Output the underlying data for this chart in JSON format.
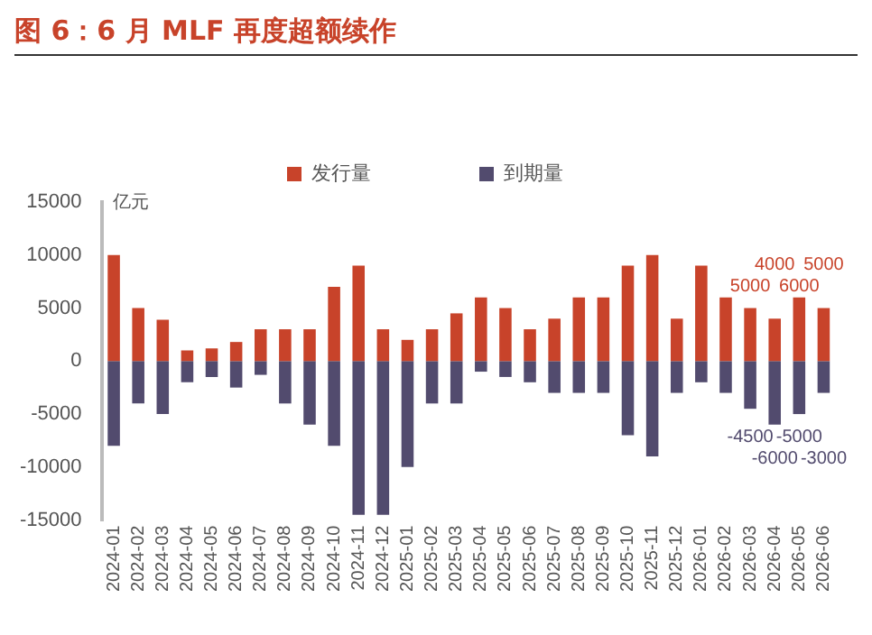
{
  "chart_data": {
    "type": "bar",
    "title": "图 6：6 月 MLF 再度超额续作",
    "ylabel": "亿元",
    "stacked": true,
    "legend": "top",
    "categories": [
      "2024-01",
      "2024-02",
      "2024-03",
      "2024-04",
      "2024-05",
      "2024-06",
      "2024-07",
      "2024-08",
      "2024-09",
      "2024-10",
      "2024-11",
      "2024-12",
      "2025-01",
      "2025-02",
      "2025-03",
      "2025-04",
      "2025-05",
      "2025-06",
      "2025-07",
      "2025-08",
      "2025-09",
      "2025-10",
      "2025-11",
      "2025-12",
      "2026-01",
      "2026-02",
      "2026-03",
      "2026-04",
      "2026-05",
      "2026-06"
    ],
    "series": [
      {
        "name": "发行量",
        "color": "#c8432a",
        "values": [
          10000,
          5000,
          3900,
          1000,
          1200,
          1800,
          3000,
          3000,
          3000,
          7000,
          9000,
          3000,
          2000,
          3000,
          4500,
          6000,
          5000,
          3000,
          4000,
          6000,
          6000,
          9000,
          10000,
          4000,
          9000,
          6000,
          5000,
          4000,
          6000,
          5000
        ],
        "value_labels": [
          null,
          null,
          null,
          null,
          null,
          null,
          null,
          null,
          null,
          null,
          null,
          null,
          null,
          null,
          null,
          null,
          null,
          null,
          null,
          null,
          null,
          null,
          null,
          null,
          null,
          null,
          "5000",
          "4000",
          "6000",
          "5000"
        ]
      },
      {
        "name": "到期量",
        "color": "#524b6e",
        "values": [
          -8000,
          -4000,
          -5000,
          -2000,
          -1500,
          -2500,
          -1300,
          -4000,
          -6000,
          -8000,
          -14500,
          -14500,
          -10000,
          -4000,
          -4000,
          -1000,
          -1500,
          -2000,
          -3000,
          -3000,
          -3000,
          -7000,
          -9000,
          -3000,
          -2000,
          -3000,
          -4500,
          -6000,
          -5000,
          -3000
        ],
        "value_labels": [
          null,
          null,
          null,
          null,
          null,
          null,
          null,
          null,
          null,
          null,
          null,
          null,
          null,
          null,
          null,
          null,
          null,
          null,
          null,
          null,
          null,
          null,
          null,
          null,
          null,
          null,
          "-4500",
          "-6000",
          "-5000",
          "-3000"
        ]
      }
    ],
    "ylim": [
      -15000,
      15000
    ],
    "yticks": [
      -15000,
      -10000,
      -5000,
      0,
      5000,
      10000,
      15000
    ],
    "grid": false
  }
}
